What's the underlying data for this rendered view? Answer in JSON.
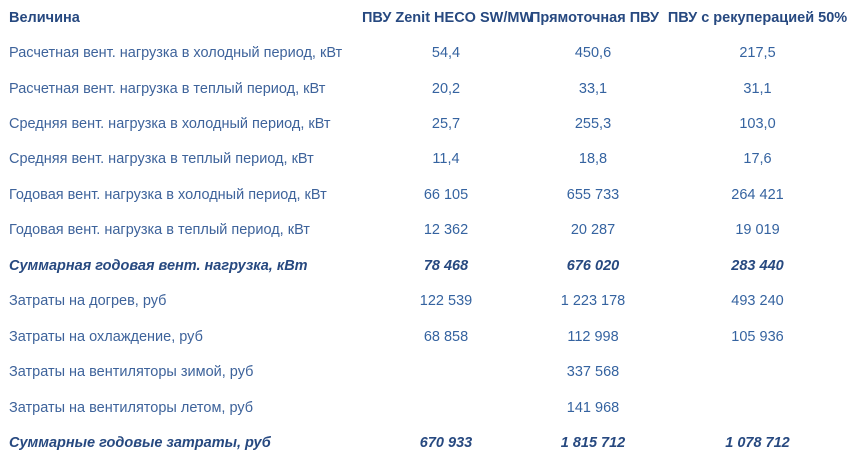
{
  "colors": {
    "background": "#ffffff",
    "header_text": "#274980",
    "label_text": "#3e639b",
    "value_text": "#3563a0"
  },
  "chart_data": {
    "type": "table",
    "title": "",
    "columns": [
      "Величина",
      "ПВУ Zenit HECO SW/MW",
      "Прямоточная ПВУ",
      "ПВУ с рекуперацией 50%"
    ],
    "rows": [
      {
        "label": "Расчетная вент. нагрузка в холодный период, кВт",
        "values": [
          "54,4",
          "450,6",
          "217,5"
        ],
        "summary": false
      },
      {
        "label": "Расчетная вент. нагрузка в теплый период, кВт",
        "values": [
          "20,2",
          "33,1",
          "31,1"
        ],
        "summary": false
      },
      {
        "label": "Средняя вент. нагрузка в холодный период, кВт",
        "values": [
          "25,7",
          "255,3",
          "103,0"
        ],
        "summary": false
      },
      {
        "label": "Средняя вент. нагрузка в теплый период, кВт",
        "values": [
          "11,4",
          "18,8",
          "17,6"
        ],
        "summary": false
      },
      {
        "label": "Годовая вент. нагрузка в холодный период, кВт",
        "values": [
          "66 105",
          "655 733",
          "264 421"
        ],
        "summary": false
      },
      {
        "label": "Годовая вент. нагрузка в теплый период, кВт",
        "values": [
          "12 362",
          "20 287",
          "19 019"
        ],
        "summary": false
      },
      {
        "label": "Суммарная годовая вент. нагрузка, кВт",
        "values": [
          "78 468",
          "676 020",
          "283 440"
        ],
        "summary": true
      },
      {
        "label": "Затраты на догрев, руб",
        "values": [
          "122 539",
          "1 223 178",
          "493 240"
        ],
        "summary": false
      },
      {
        "label": "Затраты на охлаждение, руб",
        "values": [
          "68 858",
          "112 998",
          "105 936"
        ],
        "summary": false
      },
      {
        "label": "Затраты на вентиляторы зимой, руб",
        "values": [
          "",
          "337 568",
          ""
        ],
        "summary": false
      },
      {
        "label": "Затраты на вентиляторы летом, руб",
        "values": [
          "",
          "141 968",
          ""
        ],
        "summary": false
      },
      {
        "label": "Суммарные годовые затраты, руб",
        "values": [
          "670 933",
          "1 815 712",
          "1 078 712"
        ],
        "summary": true
      }
    ]
  }
}
